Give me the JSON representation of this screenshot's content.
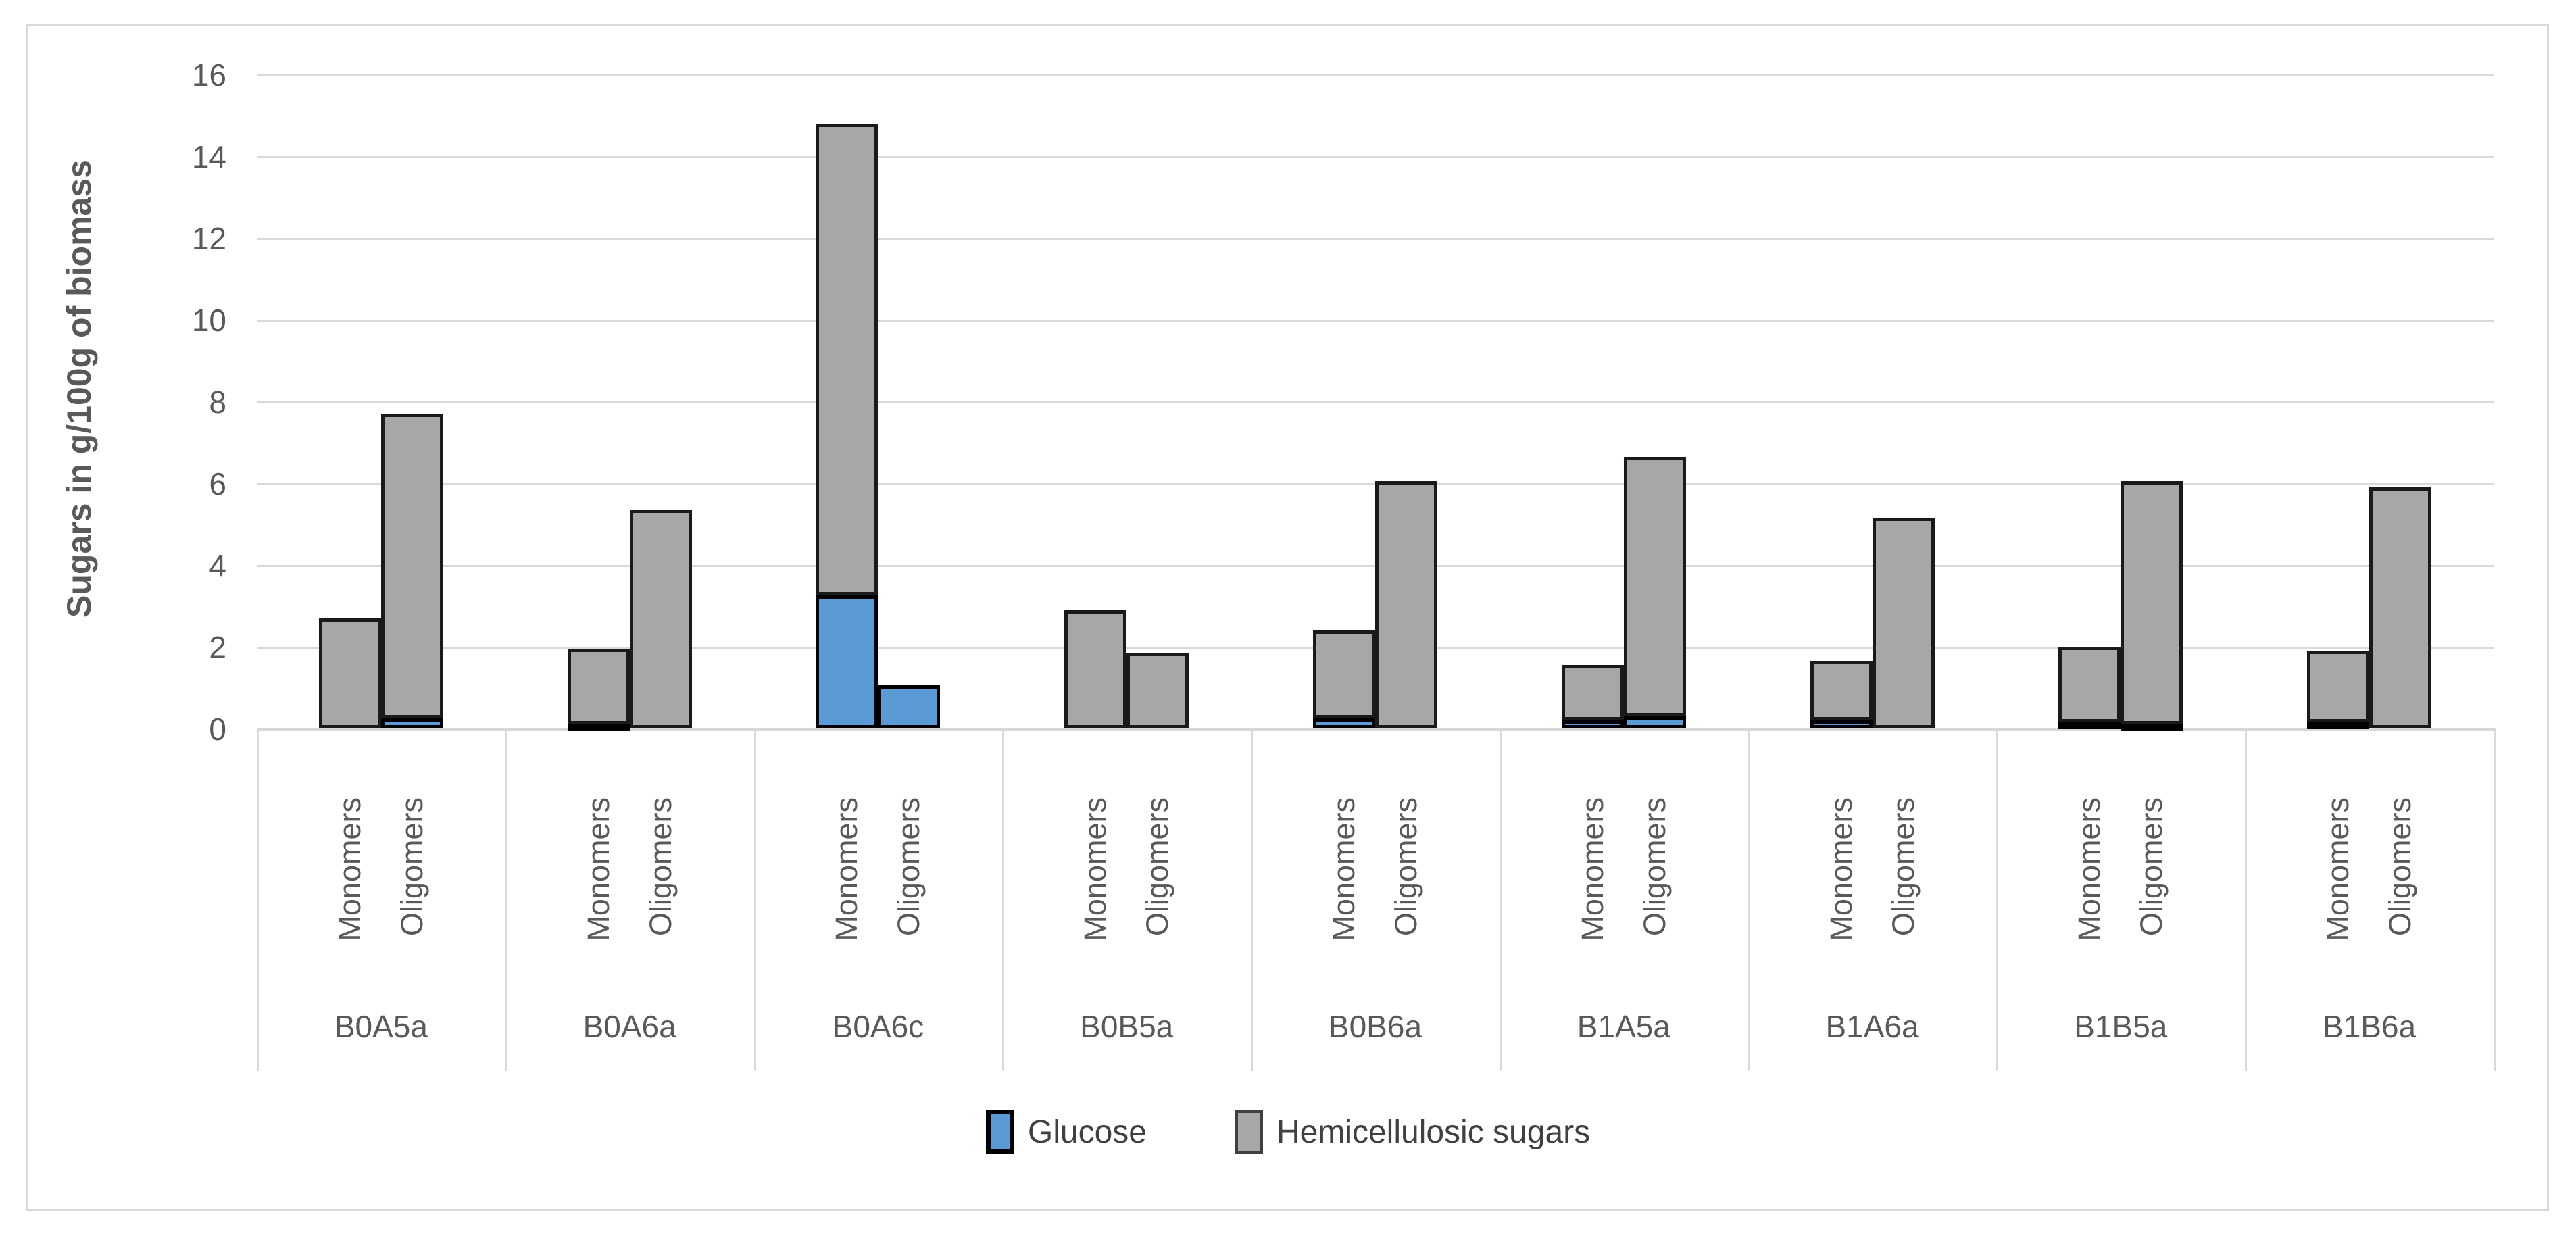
{
  "chart_data": {
    "type": "bar",
    "stacked": true,
    "title": "",
    "ylabel": "Sugars in g/100g of biomass",
    "xlabel": "",
    "ylim": [
      0,
      16
    ],
    "yticks": [
      0,
      2,
      4,
      6,
      8,
      10,
      12,
      14,
      16
    ],
    "grid": true,
    "legend_position": "bottom-center",
    "groups": [
      "B0A5a",
      "B0A6a",
      "B0A6c",
      "B0B5a",
      "B0B6a",
      "B1A5a",
      "B1A6a",
      "B1B5a",
      "B1B6a"
    ],
    "sub_categories": [
      "Monomers",
      "Oligomers"
    ],
    "series": [
      {
        "name": "Glucose",
        "color": "#5B9BD5",
        "border_color": "#000000",
        "values": [
          [
            0,
            0.25
          ],
          [
            0.1,
            0
          ],
          [
            3.25,
            1.05
          ],
          [
            0,
            0
          ],
          [
            0.25,
            0
          ],
          [
            0.2,
            0.3
          ],
          [
            0.2,
            0
          ],
          [
            0.15,
            0.1
          ],
          [
            0.15,
            0
          ]
        ]
      },
      {
        "name": "Hemicellulosic sugars",
        "color": "#A9A6A6",
        "border_color": "#1a1a1a",
        "values": [
          [
            2.7,
            7.45
          ],
          [
            1.85,
            5.35
          ],
          [
            11.55,
            0
          ],
          [
            2.9,
            1.85
          ],
          [
            2.15,
            6.05
          ],
          [
            1.35,
            6.35
          ],
          [
            1.45,
            5.15
          ],
          [
            1.85,
            5.95
          ],
          [
            1.75,
            5.9
          ]
        ]
      }
    ],
    "totals_per_bar": [
      [
        2.7,
        7.7
      ],
      [
        1.95,
        5.35
      ],
      [
        14.8,
        1.05
      ],
      [
        2.9,
        1.85
      ],
      [
        2.4,
        6.05
      ],
      [
        1.55,
        6.65
      ],
      [
        1.65,
        5.15
      ],
      [
        2.0,
        6.05
      ],
      [
        1.9,
        5.9
      ]
    ]
  },
  "styles": {
    "gridline_color": "#d9d9d9",
    "axis_text_color": "#595959",
    "frame_border_color": "#d8d8d8"
  }
}
